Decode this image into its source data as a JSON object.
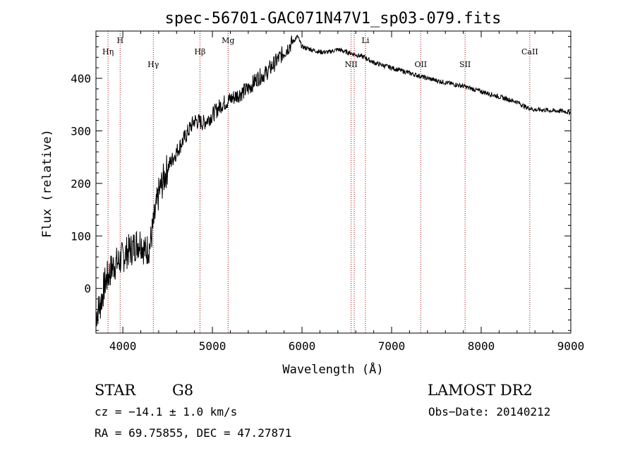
{
  "chart_data": {
    "type": "line",
    "title": "spec-56701-GAC071N47V1_sp03-079.fits",
    "xlabel": "Wavelength (Å)",
    "ylabel": "Flux (relative)",
    "xlim": [
      3700,
      9000
    ],
    "ylim": [
      -85,
      490
    ],
    "x_ticks": [
      4000,
      5000,
      6000,
      7000,
      8000,
      9000
    ],
    "y_ticks": [
      0,
      100,
      200,
      300,
      400
    ],
    "grid": false,
    "line_color": "#000000",
    "marker_color": "#aa0000",
    "series": [
      {
        "x": [
          3700,
          3750,
          3800,
          3850,
          3900,
          3950,
          4000,
          4050,
          4100,
          4150,
          4200,
          4250,
          4300,
          4350,
          4400,
          4500,
          4600,
          4700,
          4800,
          4900,
          5000,
          5100,
          5200,
          5300,
          5400,
          5500,
          5600,
          5700,
          5800,
          5900,
          5950,
          6000,
          6100,
          6200,
          6300,
          6400,
          6500,
          6600,
          6700,
          6800,
          6900,
          7000,
          7200,
          7400,
          7600,
          7800,
          8000,
          8200,
          8400,
          8500,
          8600,
          8700,
          8800,
          8900,
          9000
        ],
        "y": [
          -50,
          -30,
          10,
          30,
          45,
          50,
          60,
          70,
          75,
          85,
          90,
          70,
          80,
          130,
          180,
          230,
          260,
          290,
          320,
          315,
          330,
          350,
          360,
          370,
          380,
          400,
          410,
          430,
          450,
          470,
          480,
          460,
          455,
          450,
          450,
          455,
          450,
          445,
          440,
          430,
          425,
          420,
          410,
          400,
          392,
          385,
          375,
          365,
          355,
          345,
          340,
          340,
          338,
          338,
          335
        ]
      }
    ],
    "lines": [
      {
        "label": "Hη",
        "wavelength": 3835,
        "label_row": 1
      },
      {
        "label": "H",
        "wavelength": 3970,
        "label_row": 0
      },
      {
        "label": "Hγ",
        "wavelength": 4340,
        "label_row": 2
      },
      {
        "label": "Hβ",
        "wavelength": 4861,
        "label_row": 1
      },
      {
        "label": "Mg",
        "wavelength": 5175,
        "label_row": 0
      },
      {
        "label": "NII",
        "wavelength": 6548,
        "label_row": 2
      },
      {
        "label": "",
        "wavelength": 6583,
        "label_row": 2
      },
      {
        "label": "Li",
        "wavelength": 6708,
        "label_row": 0
      },
      {
        "label": "OII",
        "wavelength": 7325,
        "label_row": 2
      },
      {
        "label": "SII",
        "wavelength": 7820,
        "label_row": 2
      },
      {
        "label": "CaII",
        "wavelength": 8542,
        "label_row": 1
      }
    ]
  },
  "info": {
    "object_class": "STAR",
    "subclass": "G8",
    "survey": "LAMOST DR2",
    "redshift": "cz = −14.1 ± 1.0 km/s",
    "obs_date": "Obs−Date: 20140212",
    "coords": "RA =  69.75855, DEC =  47.27871"
  }
}
